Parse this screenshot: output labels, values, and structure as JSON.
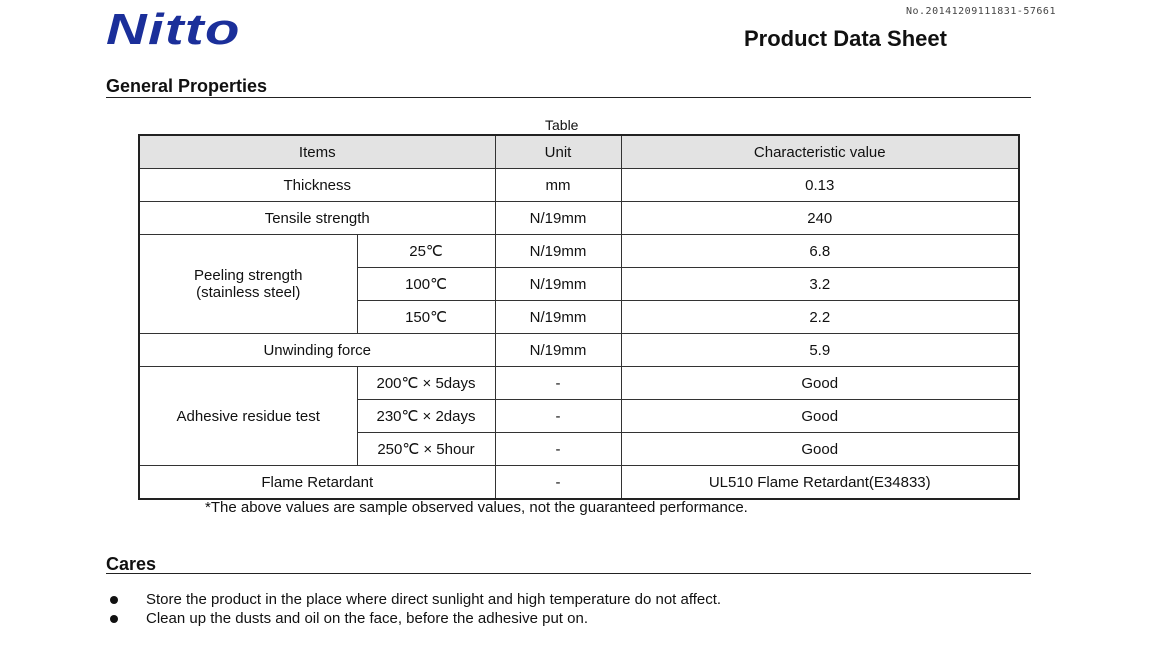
{
  "header": {
    "doc_number": "No.20141209111831-57661",
    "logo_text": "Nitto",
    "title": "Product Data Sheet"
  },
  "general_properties": {
    "heading": "General Properties",
    "caption": "Table",
    "columns": [
      "Items",
      "Unit",
      "Characteristic value"
    ],
    "rows": {
      "thickness": {
        "item": "Thickness",
        "unit": "mm",
        "value": "0.13"
      },
      "tensile": {
        "item": "Tensile strength",
        "unit": "N/19mm",
        "value": "240"
      },
      "peeling": {
        "item_line1": "Peeling strength",
        "item_line2": "(stainless steel)",
        "sub": [
          {
            "cond": "25℃",
            "unit": "N/19mm",
            "value": "6.8"
          },
          {
            "cond": "100℃",
            "unit": "N/19mm",
            "value": "3.2"
          },
          {
            "cond": "150℃",
            "unit": "N/19mm",
            "value": "2.2"
          }
        ]
      },
      "unwinding": {
        "item": "Unwinding force",
        "unit": "N/19mm",
        "value": "5.9"
      },
      "residue": {
        "item": "Adhesive residue test",
        "sub": [
          {
            "cond": "200℃ × 5days",
            "unit": "-",
            "value": "Good"
          },
          {
            "cond": "230℃ × 2days",
            "unit": "-",
            "value": "Good"
          },
          {
            "cond": "250℃ × 5hour",
            "unit": "-",
            "value": "Good"
          }
        ]
      },
      "flame": {
        "item": "Flame Retardant",
        "unit": "-",
        "value": "UL510 Flame Retardant(E34833)"
      }
    },
    "footnote": "*The above values are sample observed values, not the guaranteed performance."
  },
  "cares": {
    "heading": "Cares",
    "items": [
      "Store the product in the place where direct sunlight and high temperature do not affect.",
      "Clean up the dusts and oil on the face, before the adhesive put on."
    ]
  },
  "colors": {
    "logo": "#1b2f9a",
    "header_row_bg": "#e3e3e3"
  }
}
